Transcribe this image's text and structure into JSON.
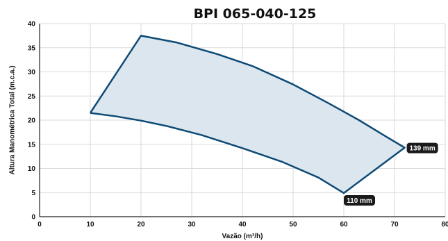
{
  "chart_data": {
    "type": "area",
    "title": "BPI 065-040-125",
    "xlabel": "Vazão (m³/h)",
    "ylabel": "Altura Manométrica Total (m.c.a.)",
    "xlim": [
      0,
      80
    ],
    "ylim": [
      0,
      40
    ],
    "xticks": [
      0,
      10,
      20,
      30,
      40,
      50,
      60,
      70,
      80
    ],
    "yticks": [
      0,
      5,
      10,
      15,
      20,
      25,
      30,
      35,
      40
    ],
    "grid": true,
    "colors": {
      "line": "#0d4a75",
      "fill": "#dce6ee",
      "grid": "#d9d9d9",
      "badge": "#1a1a1a"
    },
    "series": [
      {
        "name": "139 mm",
        "x": [
          10,
          20,
          27,
          35,
          42,
          50,
          57,
          63,
          68,
          72
        ],
        "y": [
          21.5,
          37.5,
          36.1,
          33.7,
          31.2,
          27.4,
          23.5,
          20.0,
          16.8,
          14.3
        ]
      },
      {
        "name": "110 mm",
        "x": [
          10,
          15,
          20,
          25,
          32,
          40,
          48,
          55,
          60
        ],
        "y": [
          21.5,
          20.8,
          19.9,
          18.8,
          16.9,
          14.2,
          11.3,
          8.1,
          4.9
        ]
      }
    ],
    "annotations": [
      {
        "text": "139 mm",
        "x": 72,
        "y": 14.3
      },
      {
        "text": "110 mm",
        "x": 60,
        "y": 4.9
      }
    ]
  }
}
